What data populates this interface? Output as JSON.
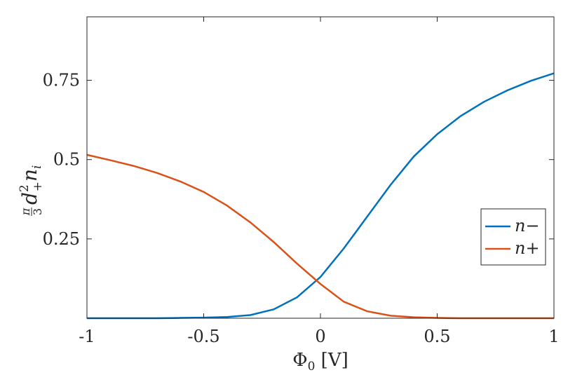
{
  "chart_data": {
    "type": "line",
    "xlabel": "Φ₀ [V]",
    "ylabel": "π/3 d₊² nᵢ",
    "xlim": [
      -1,
      1
    ],
    "ylim": [
      0,
      0.95
    ],
    "x_ticks": [
      "-1",
      "-0.5",
      "0",
      "0.5",
      "1"
    ],
    "y_ticks": [
      "0.25",
      "0.5",
      "0.75"
    ],
    "grid": false,
    "legend_position": "right",
    "x": [
      -1.0,
      -0.9,
      -0.8,
      -0.7,
      -0.6,
      -0.5,
      -0.4,
      -0.3,
      -0.2,
      -0.1,
      0.0,
      0.1,
      0.2,
      0.3,
      0.4,
      0.5,
      0.6,
      0.7,
      0.8,
      0.9,
      1.0
    ],
    "series": [
      {
        "name": "n−",
        "color": "#0072BD",
        "values": [
          0.0,
          0.0,
          0.0,
          0.0,
          0.001,
          0.002,
          0.004,
          0.01,
          0.028,
          0.066,
          0.13,
          0.22,
          0.32,
          0.42,
          0.51,
          0.58,
          0.637,
          0.682,
          0.718,
          0.748,
          0.772
        ]
      },
      {
        "name": "n+",
        "color": "#D95319",
        "values": [
          0.515,
          0.498,
          0.48,
          0.458,
          0.431,
          0.398,
          0.355,
          0.302,
          0.24,
          0.172,
          0.108,
          0.052,
          0.022,
          0.008,
          0.003,
          0.001,
          0.0,
          0.0,
          0.0,
          0.0,
          0.0
        ]
      }
    ]
  }
}
